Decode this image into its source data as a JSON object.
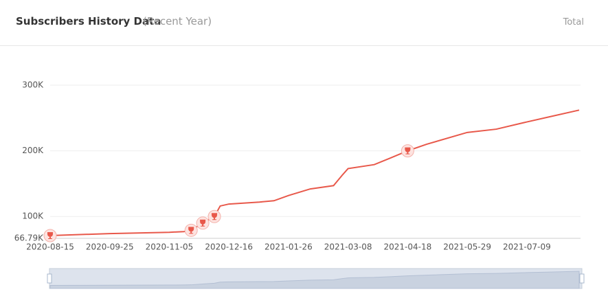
{
  "header": {
    "title": "Subscribers History Data",
    "subtitle": "(Recent Year)",
    "right_label": "Total"
  },
  "chart_data": {
    "type": "line",
    "x": [
      "2020-08-15",
      "2020-09-25",
      "2020-11-05",
      "2020-11-15",
      "2020-11-20",
      "2020-11-28",
      "2020-12-06",
      "2020-12-10",
      "2020-12-16",
      "2021-01-06",
      "2021-01-16",
      "2021-01-26",
      "2021-02-10",
      "2021-02-26",
      "2021-03-04",
      "2021-03-08",
      "2021-03-26",
      "2021-04-06",
      "2021-04-18",
      "2021-05-01",
      "2021-05-29",
      "2021-06-18",
      "2021-07-09",
      "2021-07-25",
      "2021-08-14"
    ],
    "series": [
      {
        "name": "Subscribers",
        "color": "#e8584a",
        "values": [
          71000,
          74000,
          76000,
          77000,
          79000,
          90000,
          100000,
          116000,
          119000,
          122000,
          124000,
          132000,
          142000,
          147000,
          163000,
          173000,
          179000,
          189000,
          200000,
          210000,
          228000,
          233000,
          244000,
          252000,
          262000
        ]
      }
    ],
    "milestone_points": [
      0,
      4,
      5,
      6,
      18
    ],
    "xlim": [
      "2020-08-15",
      "2021-08-14"
    ],
    "xticks": [
      "2020-08-15",
      "2020-09-25",
      "2020-11-05",
      "2020-12-16",
      "2021-01-26",
      "2021-03-08",
      "2021-04-18",
      "2021-05-29",
      "2021-07-09"
    ],
    "ylim": [
      66790,
      300000
    ],
    "yticks": [
      {
        "value": 66790,
        "label": "66.79K"
      },
      {
        "value": 100000,
        "label": "100K"
      },
      {
        "value": 200000,
        "label": "200K"
      },
      {
        "value": 300000,
        "label": "300K"
      }
    ],
    "grid": true
  }
}
